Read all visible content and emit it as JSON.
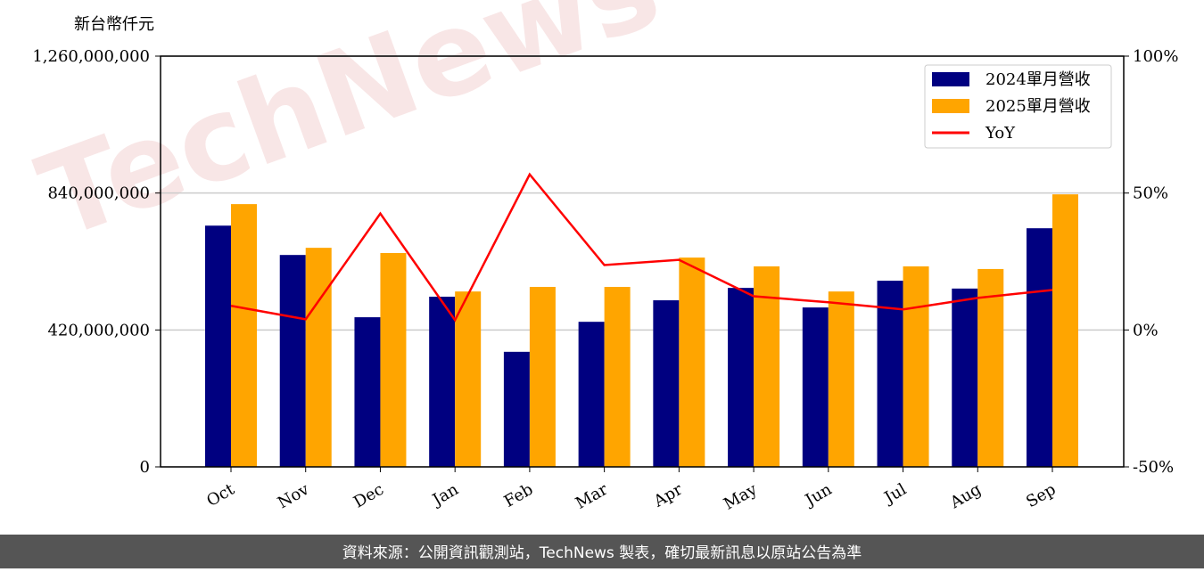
{
  "chart_data": {
    "type": "bar_line",
    "y_label": "新台幣仟元",
    "watermark": "TechNews",
    "footer": "資料來源：公開資訊觀測站，TechNews 製表，確切最新訊息以原站公告為準",
    "categories": [
      "Oct",
      "Nov",
      "Dec",
      "Jan",
      "Feb",
      "Mar",
      "Apr",
      "May",
      "Jun",
      "Jul",
      "Aug",
      "Sep"
    ],
    "series": [
      {
        "name": "2024單月營收",
        "color": "#000080",
        "values": [
          740000000,
          650000000,
          459000000,
          522000000,
          353000000,
          445000000,
          511000000,
          549000000,
          489000000,
          571000000,
          547000000,
          732000000
        ]
      },
      {
        "name": "2025單月營收",
        "color": "#ffa500",
        "values": [
          806000000,
          672000000,
          656000000,
          538000000,
          552000000,
          552000000,
          642000000,
          615000000,
          538000000,
          615000000,
          607000000,
          836000000
        ]
      },
      {
        "name": "YoY",
        "color": "#ff0000",
        "axis": "y2",
        "values": [
          8.8,
          3.9,
          42.5,
          3.6,
          56.8,
          23.7,
          25.6,
          12.3,
          10.1,
          7.5,
          11.7,
          14.6
        ]
      }
    ],
    "ylim": [
      0,
      1260000000
    ],
    "yticks": [
      0,
      {
        "value": 420000000,
        "label": "420,000,000"
      },
      {
        "value": 840000000,
        "label": "840,000,000"
      },
      {
        "value": 1260000000,
        "label": "1,260,000,000"
      }
    ],
    "y2lim": [
      -50,
      100
    ],
    "y2ticks": [
      {
        "value": -50,
        "label": "-50%"
      },
      {
        "value": 0,
        "label": "0%"
      },
      {
        "value": 50,
        "label": "50%"
      },
      {
        "value": 100,
        "label": "100%"
      }
    ],
    "grid": true,
    "legend": "upper right"
  }
}
